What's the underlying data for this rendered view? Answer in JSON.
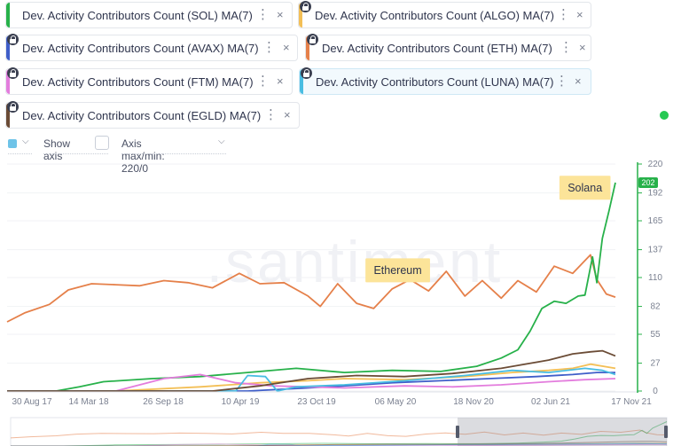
{
  "metrics": [
    {
      "label": "Dev. Activity Contributors Count (SOL) MA(7)",
      "color": "#27b14a",
      "locked": false
    },
    {
      "label": "Dev. Activity Contributors Count (ALGO) MA(7)",
      "color": "#f3bf56",
      "locked": true
    },
    {
      "label": "Dev. Activity Contributors Count (AVAX) MA(7)",
      "color": "#3f5ec9",
      "locked": true
    },
    {
      "label": "Dev. Activity Contributors Count (ETH) MA(7)",
      "color": "#e5804a",
      "locked": true
    },
    {
      "label": "Dev. Activity Contributors Count (FTM) MA(7)",
      "color": "#e37ddd",
      "locked": true
    },
    {
      "label": "Dev. Activity Contributors Count (LUNA) MA(7)",
      "color": "#49bde2",
      "locked": true
    },
    {
      "label": "Dev. Activity Contributors Count (EGLD) MA(7)",
      "color": "#6b4c36",
      "locked": true
    }
  ],
  "icons": {
    "menu": "⋮",
    "close": "×",
    "caret": "⌵"
  },
  "controls": {
    "show_axis_label": "Show axis",
    "axis_maxmin_label": "Axis max/min: 220/0",
    "show_axis_checked": false
  },
  "watermark": ".santiment",
  "chart_data": {
    "type": "line",
    "x_ticks": [
      "30 Aug 17",
      "14 Mar 18",
      "26 Sep 18",
      "10 Apr 19",
      "23 Oct 19",
      "06 May 20",
      "18 Nov 20",
      "02 Jun 21",
      "17 Nov 21"
    ],
    "x_range": [
      "2017-08-30",
      "2021-11-17"
    ],
    "y_ticks": [
      0,
      27,
      55,
      82,
      110,
      137,
      165,
      192,
      220
    ],
    "ylim": [
      0,
      220
    ],
    "y_axis_color": "#27b14a",
    "current_value": "202",
    "annotations": [
      {
        "text": "Solana",
        "date": "2021-09-01",
        "value": 197
      },
      {
        "text": "Ethereum",
        "date": "2020-05-15",
        "value": 117
      }
    ],
    "series": [
      {
        "color": "#e5804a",
        "x": [
          "2017-08-30",
          "2017-10-15",
          "2017-12-15",
          "2018-02-01",
          "2018-04-01",
          "2018-06-01",
          "2018-08-01",
          "2018-10-01",
          "2018-12-01",
          "2019-02-01",
          "2019-04-10",
          "2019-06-01",
          "2019-08-01",
          "2019-10-01",
          "2019-11-01",
          "2019-12-15",
          "2020-02-01",
          "2020-03-15",
          "2020-05-01",
          "2020-06-15",
          "2020-08-01",
          "2020-09-15",
          "2020-11-01",
          "2020-12-15",
          "2021-02-01",
          "2021-03-15",
          "2021-05-01",
          "2021-06-15",
          "2021-08-01",
          "2021-09-15",
          "2021-10-01",
          "2021-10-25",
          "2021-11-17"
        ],
        "y": [
          67,
          76,
          84,
          98,
          104,
          103,
          102,
          107,
          105,
          100,
          114,
          104,
          105,
          92,
          82,
          104,
          85,
          80,
          99,
          108,
          97,
          116,
          92,
          107,
          90,
          107,
          96,
          121,
          114,
          132,
          108,
          94,
          91
        ]
      },
      {
        "color": "#27b14a",
        "x": [
          "2017-08-30",
          "2018-01-01",
          "2018-03-01",
          "2018-05-01",
          "2018-09-01",
          "2019-01-01",
          "2019-05-01",
          "2019-09-01",
          "2020-01-01",
          "2020-05-01",
          "2020-09-01",
          "2020-12-01",
          "2021-02-01",
          "2021-03-15",
          "2021-04-15",
          "2021-05-15",
          "2021-06-15",
          "2021-07-15",
          "2021-08-15",
          "2021-09-01",
          "2021-09-20",
          "2021-10-01",
          "2021-10-15",
          "2021-11-01",
          "2021-11-17"
        ],
        "y": [
          0,
          0,
          4,
          9,
          12,
          14,
          18,
          22,
          18,
          20,
          19,
          24,
          32,
          40,
          58,
          80,
          87,
          85,
          92,
          93,
          130,
          105,
          148,
          175,
          202
        ]
      },
      {
        "color": "#f3bf56",
        "x": [
          "2017-08-30",
          "2018-06-01",
          "2019-01-01",
          "2019-06-01",
          "2019-10-01",
          "2020-01-01",
          "2020-06-01",
          "2020-11-01",
          "2021-03-01",
          "2021-06-01",
          "2021-08-01",
          "2021-09-15",
          "2021-11-17"
        ],
        "y": [
          0,
          0,
          4,
          8,
          10,
          12,
          11,
          14,
          18,
          20,
          22,
          26,
          22
        ]
      },
      {
        "color": "#3f5ec9",
        "x": [
          "2017-08-30",
          "2019-05-01",
          "2019-10-01",
          "2020-01-01",
          "2020-05-01",
          "2020-09-01",
          "2021-01-01",
          "2021-05-01",
          "2021-08-01",
          "2021-10-01",
          "2021-11-17"
        ],
        "y": [
          0,
          0,
          3,
          5,
          8,
          10,
          12,
          14,
          16,
          18,
          18
        ]
      },
      {
        "color": "#e37ddd",
        "x": [
          "2017-08-30",
          "2018-06-01",
          "2018-10-01",
          "2019-01-01",
          "2019-04-01",
          "2019-07-01",
          "2019-10-01",
          "2020-01-01",
          "2020-06-01",
          "2020-10-01",
          "2021-02-01",
          "2021-06-01",
          "2021-09-01",
          "2021-11-17"
        ],
        "y": [
          0,
          0,
          12,
          16,
          8,
          5,
          4,
          3,
          5,
          4,
          6,
          9,
          11,
          12
        ]
      },
      {
        "color": "#49bde2",
        "x": [
          "2017-08-30",
          "2019-04-01",
          "2019-05-01",
          "2019-06-15",
          "2019-07-15",
          "2019-09-01",
          "2020-01-01",
          "2020-06-01",
          "2020-11-01",
          "2021-03-01",
          "2021-06-01",
          "2021-09-01",
          "2021-10-15",
          "2021-11-17"
        ],
        "y": [
          0,
          0,
          15,
          14,
          0,
          4,
          6,
          10,
          15,
          20,
          18,
          22,
          20,
          16
        ]
      },
      {
        "color": "#6b4c36",
        "x": [
          "2017-08-30",
          "2019-02-01",
          "2019-06-01",
          "2019-10-01",
          "2020-02-01",
          "2020-06-01",
          "2020-10-01",
          "2021-02-01",
          "2021-06-01",
          "2021-08-01",
          "2021-09-15",
          "2021-10-15",
          "2021-11-17"
        ],
        "y": [
          0,
          0,
          5,
          12,
          15,
          14,
          17,
          22,
          30,
          36,
          38,
          39,
          34
        ]
      }
    ]
  }
}
